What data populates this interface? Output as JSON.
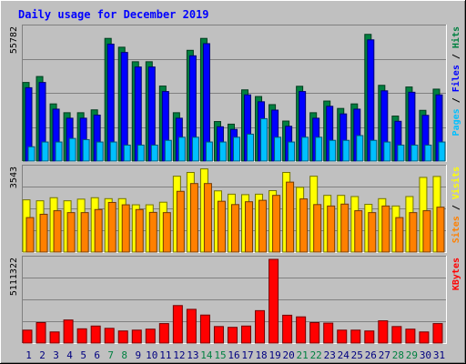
{
  "chart_data": {
    "title": "Daily usage for December 2019",
    "categories": [
      "1",
      "2",
      "3",
      "4",
      "5",
      "6",
      "7",
      "8",
      "9",
      "10",
      "11",
      "12",
      "13",
      "14",
      "15",
      "16",
      "17",
      "18",
      "19",
      "20",
      "21",
      "22",
      "23",
      "24",
      "25",
      "26",
      "27",
      "28",
      "29",
      "30",
      "31"
    ],
    "weekend_days": [
      "7",
      "8",
      "14",
      "15",
      "21",
      "22",
      "28",
      "29"
    ],
    "panels": [
      {
        "id": "hits",
        "type": "bar",
        "ylim": [
          0,
          55782
        ],
        "max_label": "55782",
        "ylabel_parts": [
          {
            "text": "Pages",
            "color": "#00c0ff"
          },
          {
            "text": " / ",
            "color": "#000000"
          },
          {
            "text": "Files",
            "color": "#0000ff"
          },
          {
            "text": " / ",
            "color": "#000000"
          },
          {
            "text": "Hits",
            "color": "#008040"
          }
        ],
        "series": [
          {
            "name": "Hits",
            "color": "#008040",
            "values": [
              33000,
              35500,
              24000,
              20300,
              20300,
              21500,
              51500,
              47800,
              41700,
              41700,
              31500,
              20300,
              46500,
              51500,
              16600,
              15500,
              29900,
              27100,
              23700,
              16800,
              31400,
              20300,
              25200,
              22100,
              24000,
              53200,
              31800,
              18900,
              31100,
              21300,
              30200
            ]
          },
          {
            "name": "Files",
            "color": "#0000ff",
            "values": [
              30800,
              33000,
              21800,
              18000,
              18000,
              19300,
              49100,
              45600,
              39500,
              39500,
              29200,
              18000,
              44200,
              49300,
              14400,
              13300,
              27800,
              24900,
              21400,
              14600,
              29200,
              18000,
              23000,
              19800,
              21800,
              50900,
              29500,
              16700,
              28900,
              19200,
              27800
            ]
          },
          {
            "name": "Pages",
            "color": "#00c0ff",
            "values": [
              6000,
              8000,
              8000,
              9500,
              9000,
              8000,
              8000,
              6700,
              6700,
              6700,
              8700,
              10000,
              10000,
              8000,
              8000,
              10000,
              11300,
              17800,
              10000,
              8000,
              10000,
              10000,
              8700,
              8700,
              10700,
              8700,
              8000,
              6700,
              6700,
              6700,
              8000
            ]
          }
        ]
      },
      {
        "id": "visits",
        "type": "bar",
        "ylim": [
          0,
          3543
        ],
        "max_label": "3543",
        "ylabel_parts": [
          {
            "text": "Sites",
            "color": "#ff8000"
          },
          {
            "text": " / ",
            "color": "#000000"
          },
          {
            "text": "Visits",
            "color": "#ffff00"
          }
        ],
        "series": [
          {
            "name": "Visits",
            "color": "#ffff00",
            "values": [
              2210,
              2170,
              2300,
              2170,
              2240,
              2300,
              2260,
              2260,
              2000,
              2000,
              2110,
              3210,
              3370,
              3520,
              2590,
              2450,
              2430,
              2450,
              2600,
              3370,
              2740,
              3210,
              2400,
              2400,
              2350,
              2020,
              2260,
              1950,
              2350,
              3160,
              3200
            ]
          },
          {
            "name": "Sites",
            "color": "#ff8000",
            "values": [
              1460,
              1600,
              1750,
              1670,
              1670,
              1800,
              2100,
              2000,
              1800,
              1680,
              1670,
              2570,
              2900,
              2900,
              2150,
              2010,
              2130,
              2190,
              2400,
              2960,
              2250,
              2010,
              1950,
              2030,
              1750,
              1670,
              1950,
              1460,
              1670,
              1750,
              1900
            ]
          }
        ]
      },
      {
        "id": "kbytes",
        "type": "bar",
        "ylim": [
          0,
          5111322
        ],
        "max_label": "5111322",
        "ylabel_parts": [
          {
            "text": "KBytes",
            "color": "#ff0000"
          }
        ],
        "series": [
          {
            "name": "KBytes",
            "color": "#ff0000",
            "values": [
              790000,
              1250000,
              680000,
              1410000,
              870000,
              1040000,
              900000,
              740000,
              790000,
              850000,
              1190000,
              2290000,
              2060000,
              1710000,
              1010000,
              960000,
              1040000,
              1980000,
              5111322,
              1700000,
              1600000,
              1250000,
              1220000,
              790000,
              790000,
              740000,
              1360000,
              1010000,
              850000,
              680000,
              1190000
            ]
          }
        ]
      }
    ]
  }
}
